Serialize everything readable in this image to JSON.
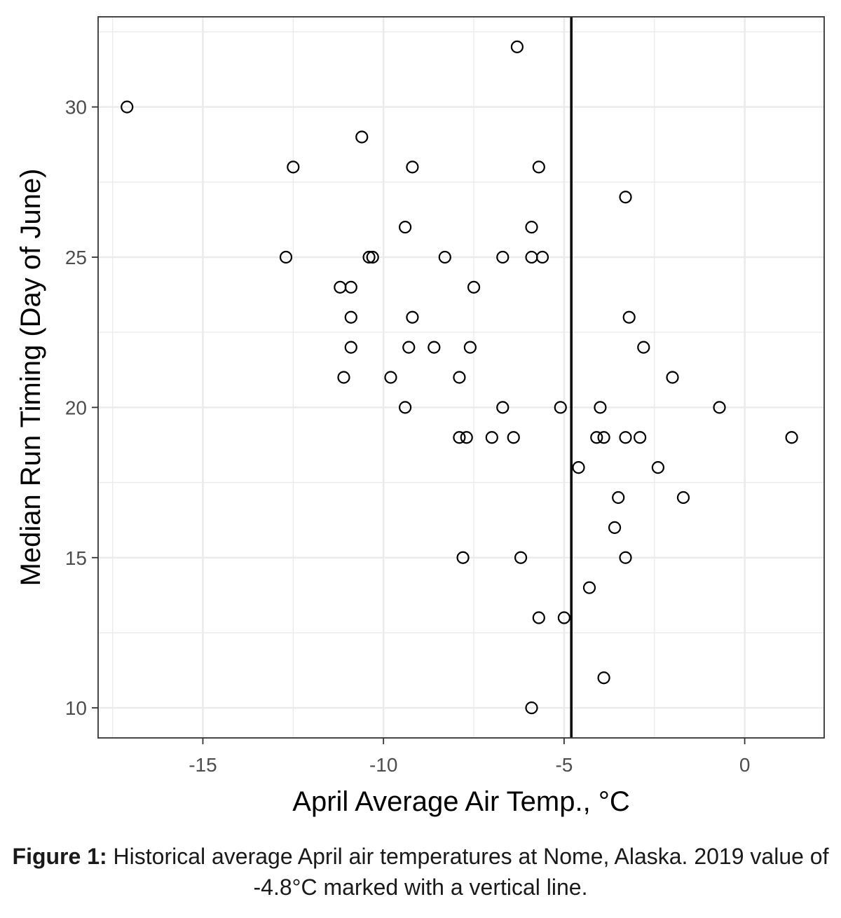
{
  "chart_data": {
    "type": "scatter",
    "xlabel": "April Average Air Temp., °C",
    "ylabel": "Median Run Timing (Day of June)",
    "xlim": [
      -17.9,
      2.2
    ],
    "ylim": [
      9.0,
      33.0
    ],
    "x_ticks": [
      -15,
      -10,
      -5,
      0
    ],
    "x_tick_labels": [
      "-15",
      "-10",
      "-5",
      "0"
    ],
    "y_ticks": [
      10,
      15,
      20,
      25,
      30
    ],
    "y_tick_labels": [
      "10",
      "15",
      "20",
      "25",
      "30"
    ],
    "grid": true,
    "reference_line": {
      "orientation": "vertical",
      "x": -4.8
    },
    "points": [
      {
        "x": -17.1,
        "y": 30
      },
      {
        "x": -12.5,
        "y": 28
      },
      {
        "x": -12.7,
        "y": 25
      },
      {
        "x": -10.6,
        "y": 29
      },
      {
        "x": -10.4,
        "y": 25
      },
      {
        "x": -10.3,
        "y": 25
      },
      {
        "x": -11.2,
        "y": 24
      },
      {
        "x": -10.9,
        "y": 24
      },
      {
        "x": -10.9,
        "y": 23
      },
      {
        "x": -10.9,
        "y": 22
      },
      {
        "x": -11.1,
        "y": 21
      },
      {
        "x": -9.8,
        "y": 21
      },
      {
        "x": -9.4,
        "y": 26
      },
      {
        "x": -9.2,
        "y": 28
      },
      {
        "x": -9.2,
        "y": 23
      },
      {
        "x": -9.3,
        "y": 22
      },
      {
        "x": -9.4,
        "y": 20
      },
      {
        "x": -8.3,
        "y": 25
      },
      {
        "x": -8.6,
        "y": 22
      },
      {
        "x": -7.9,
        "y": 21
      },
      {
        "x": -7.5,
        "y": 24
      },
      {
        "x": -7.6,
        "y": 22
      },
      {
        "x": -7.9,
        "y": 19
      },
      {
        "x": -7.7,
        "y": 19
      },
      {
        "x": -7.8,
        "y": 15
      },
      {
        "x": -7.0,
        "y": 19
      },
      {
        "x": -6.7,
        "y": 25
      },
      {
        "x": -6.7,
        "y": 20
      },
      {
        "x": -6.4,
        "y": 19
      },
      {
        "x": -6.3,
        "y": 32
      },
      {
        "x": -6.2,
        "y": 15
      },
      {
        "x": -5.9,
        "y": 26
      },
      {
        "x": -5.9,
        "y": 25
      },
      {
        "x": -5.6,
        "y": 25
      },
      {
        "x": -5.7,
        "y": 28
      },
      {
        "x": -5.7,
        "y": 13
      },
      {
        "x": -5.9,
        "y": 10
      },
      {
        "x": -5.1,
        "y": 20
      },
      {
        "x": -5.0,
        "y": 13
      },
      {
        "x": -4.6,
        "y": 18
      },
      {
        "x": -4.3,
        "y": 14
      },
      {
        "x": -4.1,
        "y": 19
      },
      {
        "x": -4.0,
        "y": 20
      },
      {
        "x": -3.9,
        "y": 19
      },
      {
        "x": -3.9,
        "y": 11
      },
      {
        "x": -3.6,
        "y": 16
      },
      {
        "x": -3.5,
        "y": 17
      },
      {
        "x": -3.3,
        "y": 27
      },
      {
        "x": -3.2,
        "y": 23
      },
      {
        "x": -3.3,
        "y": 19
      },
      {
        "x": -3.3,
        "y": 15
      },
      {
        "x": -2.9,
        "y": 19
      },
      {
        "x": -2.8,
        "y": 22
      },
      {
        "x": -2.4,
        "y": 18
      },
      {
        "x": -2.0,
        "y": 21
      },
      {
        "x": -1.7,
        "y": 17
      },
      {
        "x": -0.7,
        "y": 20
      },
      {
        "x": 1.3,
        "y": 19
      }
    ]
  },
  "caption": {
    "lead": "Figure 1:",
    "text": " Historical average April air temperatures at Nome, Alaska. 2019 value of -4.8°C marked with a vertical line."
  },
  "colors": {
    "point_stroke": "#000000",
    "grid": "#ebebeb",
    "panel_border": "#333333",
    "reference_line": "#000000"
  }
}
